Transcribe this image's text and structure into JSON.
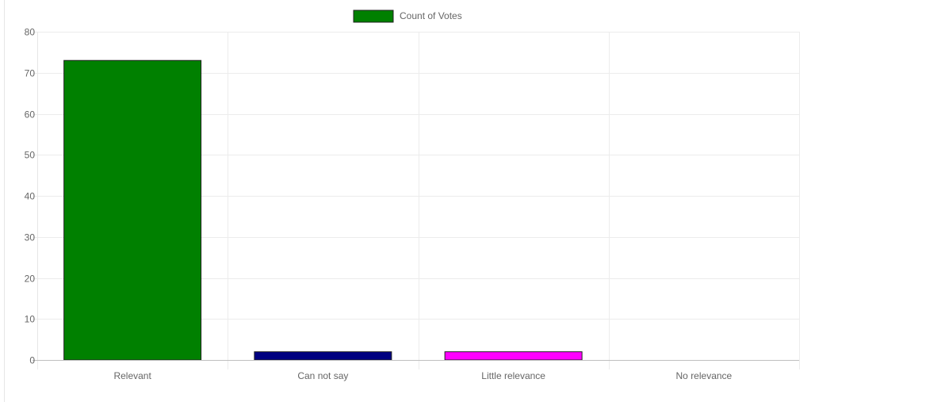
{
  "chart_data": {
    "type": "bar",
    "title": "",
    "xlabel": "",
    "ylabel": "",
    "categories": [
      "Relevant",
      "Can not say",
      "Little relevance",
      "No relevance"
    ],
    "series": [
      {
        "name": "Count of Votes",
        "values": [
          73,
          2,
          2,
          0
        ]
      }
    ],
    "bar_colors": [
      "#008000",
      "#000080",
      "#ff00ff",
      "#cccccc"
    ],
    "legend_color": "#008000",
    "ylim": [
      0,
      80
    ],
    "yticks": [
      0,
      10,
      20,
      30,
      40,
      50,
      60,
      70,
      80
    ],
    "grid": true,
    "legend_position": "top"
  }
}
